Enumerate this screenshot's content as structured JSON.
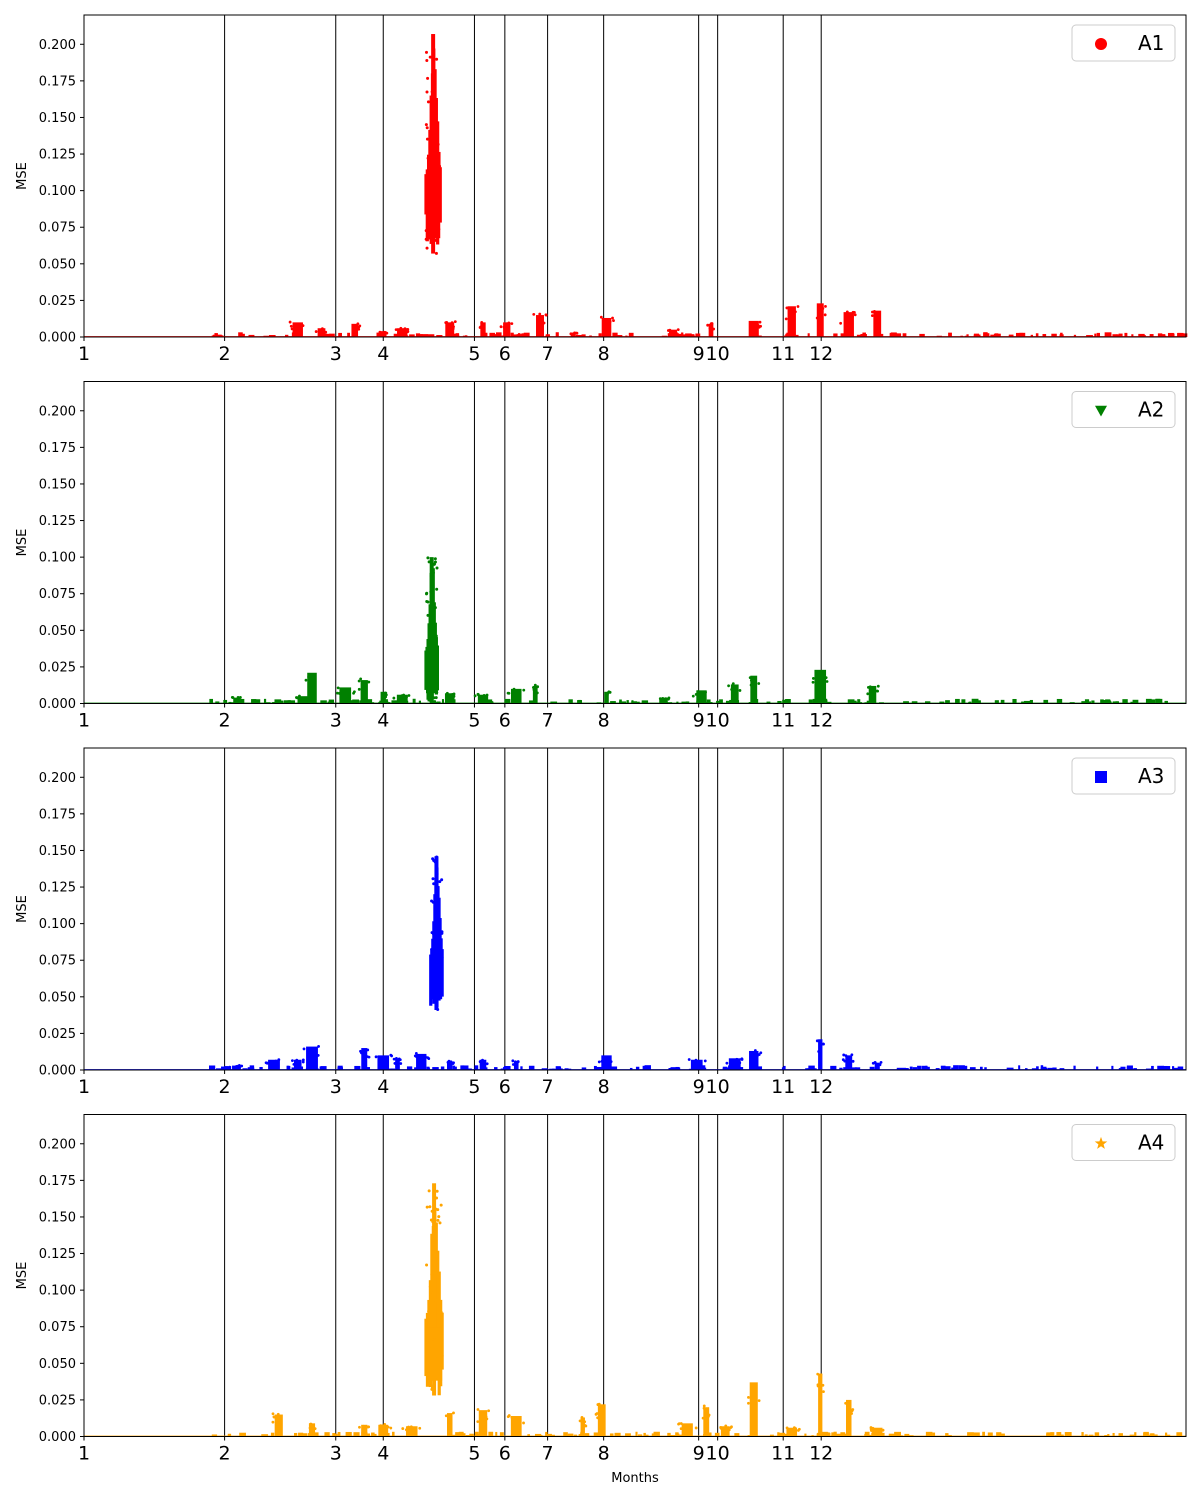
{
  "chart_data": {
    "type": "scatter",
    "xlabel": "Months",
    "ylabel": "MSE",
    "xlim": [
      1,
      12.6
    ],
    "ylim": [
      0,
      0.22
    ],
    "grid": "vertical lines at month boundaries",
    "legend_placement": "top-right",
    "x_tick_values": [
      1,
      2,
      3,
      4,
      5,
      6,
      7,
      8,
      9,
      10,
      11,
      12
    ],
    "x_tick_labels": [
      "1",
      "2",
      "3",
      "4",
      "5",
      "6",
      "7",
      "8",
      "9",
      "10",
      "11",
      "12"
    ],
    "x_tick_positions": [
      1.0,
      2.48,
      3.65,
      4.15,
      5.11,
      5.43,
      5.88,
      6.47,
      7.47,
      7.67,
      8.36,
      8.76
    ],
    "y_ticks": [
      0.0,
      0.025,
      0.05,
      0.075,
      0.1,
      0.125,
      0.15,
      0.175,
      0.2
    ],
    "y_tick_labels": [
      "0.000",
      "0.025",
      "0.050",
      "0.075",
      "0.100",
      "0.125",
      "0.150",
      "0.175",
      "0.200"
    ],
    "panels": [
      {
        "name": "A1",
        "color": "#ff0000",
        "marker": "circle",
        "spike": {
          "x": [
            4.6,
            4.75
          ],
          "y_min": 0.057,
          "y_max": 0.207
        },
        "bursts": [
          {
            "x": 3.25,
            "y": 0.01
          },
          {
            "x": 3.5,
            "y": 0.006
          },
          {
            "x": 3.85,
            "y": 0.009
          },
          {
            "x": 4.15,
            "y": 0.004
          },
          {
            "x": 4.35,
            "y": 0.006
          },
          {
            "x": 4.85,
            "y": 0.01
          },
          {
            "x": 5.2,
            "y": 0.01
          },
          {
            "x": 5.45,
            "y": 0.01
          },
          {
            "x": 5.8,
            "y": 0.015
          },
          {
            "x": 6.15,
            "y": 0.003
          },
          {
            "x": 6.5,
            "y": 0.013
          },
          {
            "x": 7.2,
            "y": 0.005
          },
          {
            "x": 7.6,
            "y": 0.009
          },
          {
            "x": 8.05,
            "y": 0.011
          },
          {
            "x": 8.45,
            "y": 0.021
          },
          {
            "x": 8.75,
            "y": 0.023
          },
          {
            "x": 9.05,
            "y": 0.017
          },
          {
            "x": 9.35,
            "y": 0.018
          }
        ]
      },
      {
        "name": "A2",
        "color": "#008000",
        "marker": "triangle-down",
        "spike": {
          "x": [
            4.6,
            4.72
          ],
          "y_min": 0.0,
          "y_max": 0.1
        },
        "bursts": [
          {
            "x": 2.6,
            "y": 0.004
          },
          {
            "x": 3.3,
            "y": 0.005
          },
          {
            "x": 3.4,
            "y": 0.021
          },
          {
            "x": 3.75,
            "y": 0.011
          },
          {
            "x": 3.95,
            "y": 0.016
          },
          {
            "x": 4.15,
            "y": 0.008
          },
          {
            "x": 4.35,
            "y": 0.006
          },
          {
            "x": 4.85,
            "y": 0.007
          },
          {
            "x": 5.2,
            "y": 0.006
          },
          {
            "x": 5.55,
            "y": 0.01
          },
          {
            "x": 5.75,
            "y": 0.012
          },
          {
            "x": 6.5,
            "y": 0.008
          },
          {
            "x": 7.1,
            "y": 0.004
          },
          {
            "x": 7.5,
            "y": 0.009
          },
          {
            "x": 7.85,
            "y": 0.013
          },
          {
            "x": 8.05,
            "y": 0.019
          },
          {
            "x": 8.75,
            "y": 0.023
          },
          {
            "x": 9.3,
            "y": 0.012
          }
        ]
      },
      {
        "name": "A3",
        "color": "#0000ff",
        "marker": "square",
        "spike": {
          "x": [
            4.65,
            4.77
          ],
          "y_min": 0.041,
          "y_max": 0.146
        },
        "bursts": [
          {
            "x": 2.6,
            "y": 0.003
          },
          {
            "x": 3.0,
            "y": 0.007
          },
          {
            "x": 3.25,
            "y": 0.007
          },
          {
            "x": 3.4,
            "y": 0.016
          },
          {
            "x": 3.95,
            "y": 0.015
          },
          {
            "x": 4.15,
            "y": 0.01
          },
          {
            "x": 4.3,
            "y": 0.008
          },
          {
            "x": 4.55,
            "y": 0.011
          },
          {
            "x": 4.85,
            "y": 0.006
          },
          {
            "x": 5.2,
            "y": 0.007
          },
          {
            "x": 5.55,
            "y": 0.006
          },
          {
            "x": 6.5,
            "y": 0.01
          },
          {
            "x": 7.45,
            "y": 0.007
          },
          {
            "x": 7.85,
            "y": 0.008
          },
          {
            "x": 8.05,
            "y": 0.013
          },
          {
            "x": 8.75,
            "y": 0.021
          },
          {
            "x": 9.05,
            "y": 0.01
          },
          {
            "x": 9.35,
            "y": 0.005
          }
        ]
      },
      {
        "name": "A4",
        "color": "#ffa500",
        "marker": "star",
        "spike": {
          "x": [
            4.6,
            4.77
          ],
          "y_min": 0.028,
          "y_max": 0.173
        },
        "bursts": [
          {
            "x": 3.05,
            "y": 0.015
          },
          {
            "x": 3.4,
            "y": 0.009
          },
          {
            "x": 3.95,
            "y": 0.008
          },
          {
            "x": 4.15,
            "y": 0.008
          },
          {
            "x": 4.45,
            "y": 0.007
          },
          {
            "x": 4.85,
            "y": 0.016
          },
          {
            "x": 5.2,
            "y": 0.018
          },
          {
            "x": 5.55,
            "y": 0.014
          },
          {
            "x": 6.25,
            "y": 0.013
          },
          {
            "x": 6.45,
            "y": 0.022
          },
          {
            "x": 7.35,
            "y": 0.009
          },
          {
            "x": 7.55,
            "y": 0.02
          },
          {
            "x": 7.75,
            "y": 0.007
          },
          {
            "x": 8.05,
            "y": 0.037
          },
          {
            "x": 8.45,
            "y": 0.006
          },
          {
            "x": 8.75,
            "y": 0.043
          },
          {
            "x": 9.05,
            "y": 0.025
          },
          {
            "x": 9.35,
            "y": 0.006
          }
        ]
      }
    ]
  }
}
